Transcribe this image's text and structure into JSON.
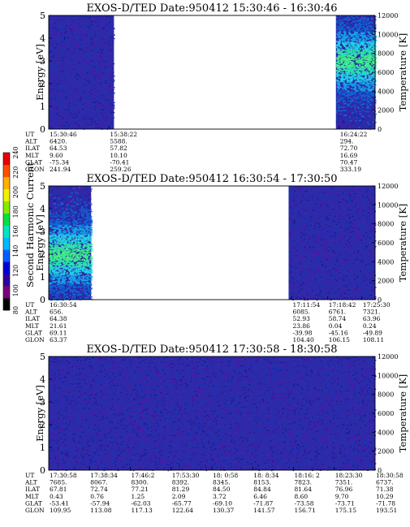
{
  "colors": {
    "background": "#2a2ca8",
    "speckle": [
      "#6b0aa0",
      "#1730c8",
      "#3a20b0",
      "#0f1a90",
      "#5410a0"
    ],
    "enhanced": [
      "#0a6cd8",
      "#15a8ec",
      "#22d6e4",
      "#2ee6b0",
      "#3ef28a"
    ],
    "colorbar": [
      "#000000",
      "#7a007a",
      "#30009e",
      "#0000d8",
      "#0060ff",
      "#00b8ff",
      "#00e6c0",
      "#00e040",
      "#8ae800",
      "#f0f000",
      "#ffb000",
      "#ff5000",
      "#e80000"
    ]
  },
  "colorbar": {
    "label": "Second Harmonic Current",
    "ticks": [
      "80",
      "100",
      "120",
      "140",
      "160",
      "180",
      "200",
      "220",
      "240"
    ]
  },
  "chart_data": [
    {
      "type": "heatmap",
      "title": "EXOS-D/TED    Date:950412   15:30:46 - 16:30:46",
      "ylabel": "Energy [eV]",
      "ylim": [
        0,
        5
      ],
      "yticks": [
        "0",
        "1",
        "2",
        "3",
        "4",
        "5"
      ],
      "y2label": "Temperature [K]",
      "y2lim": [
        0,
        12000
      ],
      "y2ticks": [
        "0",
        "2000",
        "4000",
        "6000",
        "8000",
        "10000",
        "12000"
      ],
      "x_range": [
        "15:30:46",
        "16:30:46"
      ],
      "data_segments": [
        {
          "start": 0.0,
          "end": 0.2,
          "enhanced": false
        },
        {
          "start": 0.88,
          "end": 1.0,
          "enhanced": true,
          "peak_energy_eV": 3.0,
          "peak_temperature_K": 7200
        }
      ],
      "orbit": {
        "row_labels": [
          "UT",
          "ALT",
          "ILAT",
          "MLT",
          "GLAT",
          "GLON"
        ],
        "columns": [
          {
            "pos": 0.0,
            "values": [
              "15:30:46",
              "6420.",
              "64.53",
              "9.60",
              "-75.34",
              "241.94"
            ]
          },
          {
            "pos": 0.185,
            "values": [
              "15:38:22",
              "5588.",
              "57.82",
              "10.10",
              "-70.41",
              "259.26"
            ]
          },
          {
            "pos": 0.89,
            "values": [
              "16:24:22",
              "294.",
              "72.70",
              "16.69",
              "70.47",
              "333.19"
            ]
          }
        ]
      }
    },
    {
      "type": "heatmap",
      "title": "EXOS-D/TED    Date:950412   16:30:54 - 17:30:50",
      "ylabel": "Energy [eV]",
      "ylim": [
        0,
        5
      ],
      "yticks": [
        "0",
        "1",
        "2",
        "3",
        "4",
        "5"
      ],
      "y2label": "Temperature [K]",
      "y2lim": [
        0,
        12000
      ],
      "y2ticks": [
        "0",
        "2000",
        "4000",
        "6000",
        "8000",
        "10000",
        "12000"
      ],
      "x_range": [
        "16:30:54",
        "17:30:50"
      ],
      "data_segments": [
        {
          "start": 0.0,
          "end": 0.13,
          "enhanced": true,
          "peak_energy_eV": 2.0,
          "peak_temperature_K": 5000
        },
        {
          "start": 0.735,
          "end": 1.0,
          "enhanced": false
        }
      ],
      "orbit": {
        "row_labels": [
          "UT",
          "ALT",
          "ILAT",
          "MLT",
          "GLAT",
          "GLON"
        ],
        "columns": [
          {
            "pos": 0.0,
            "values": [
              "16:30:54",
              "656.",
              "64.38",
              "21.61",
              "69.11",
              "63.37"
            ]
          },
          {
            "pos": 0.745,
            "values": [
              "17:11:54",
              "6085.",
              "52.93",
              "23.86",
              "-39.98",
              "104.40"
            ]
          },
          {
            "pos": 0.855,
            "values": [
              "17:18:42",
              "6761.",
              "58.74",
              "0.04",
              "-45.16",
              "106.15"
            ]
          },
          {
            "pos": 0.96,
            "values": [
              "17:25:30",
              "7321.",
              "63.96",
              "0.24",
              "-49.89",
              "108.11"
            ]
          }
        ]
      }
    },
    {
      "type": "heatmap",
      "title": "EXOS-D/TED    Date:950412   17:30:58 - 18:30:58",
      "ylabel": "Energy [eV]",
      "ylim": [
        0,
        5
      ],
      "yticks": [
        "0",
        "1",
        "2",
        "3",
        "4",
        "5"
      ],
      "y2label": "Temperature [K]",
      "y2lim": [
        0,
        12000
      ],
      "y2ticks": [
        "0",
        "2000",
        "4000",
        "6000",
        "8000",
        "10000",
        "12000"
      ],
      "x_range": [
        "17:30:58",
        "18:30:58"
      ],
      "data_segments": [
        {
          "start": 0.0,
          "end": 1.0,
          "enhanced": false
        }
      ],
      "orbit": {
        "row_labels": [
          "UT",
          "ALT",
          "ILAT",
          "MLT",
          "GLAT",
          "GLON"
        ],
        "columns": [
          {
            "pos": 0.0,
            "values": [
              "17:30:58",
              "7685.",
              "67.81",
              "0.43",
              "-53.41",
              "109.95"
            ]
          },
          {
            "pos": 0.125,
            "values": [
              "17:38:34",
              "8067.",
              "72.74",
              "0.76",
              "-57.94",
              "113.08"
            ]
          },
          {
            "pos": 0.25,
            "values": [
              "17:46:2",
              "8300.",
              "77.21",
              "1.25",
              "-62.03",
              "117.13"
            ]
          },
          {
            "pos": 0.375,
            "values": [
              "17:53:30",
              "8392.",
              "81.29",
              "2.09",
              "-65.77",
              "122.64"
            ]
          },
          {
            "pos": 0.5,
            "values": [
              "18: 0:58",
              "8345.",
              "84.50",
              "3.72",
              "-69.10",
              "130.37"
            ]
          },
          {
            "pos": 0.625,
            "values": [
              "18: 8:34",
              "8153.",
              "84.84",
              "6.46",
              "-71.87",
              "141.57"
            ]
          },
          {
            "pos": 0.75,
            "values": [
              "18:16: 2",
              "7823.",
              "81.64",
              "8.60",
              "-73.58",
              "156.71"
            ]
          },
          {
            "pos": 0.875,
            "values": [
              "18:23:30",
              "7351.",
              "76.96",
              "9.70",
              "-73.71",
              "175.15"
            ]
          },
          {
            "pos": 1.0,
            "values": [
              "18:30:58",
              "6737.",
              "71.38",
              "10.29",
              "-71.78",
              "193.51"
            ]
          }
        ]
      }
    }
  ]
}
